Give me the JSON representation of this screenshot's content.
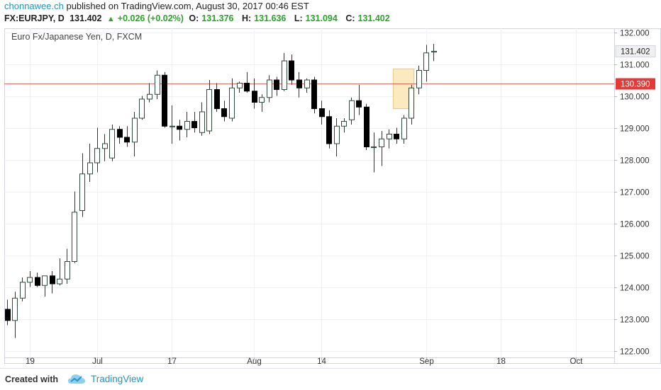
{
  "header": {
    "user": "chonnawee.ch",
    "published_text": "published on TradingView.com, August 30, 2017 00:46 EST",
    "symbol": "FX:EURJPY, D",
    "last": "131.402",
    "change": "+0.026 (+0.02%)",
    "o_label": "O:",
    "o_val": "131.376",
    "h_label": "H:",
    "h_val": "131.636",
    "l_label": "L:",
    "l_val": "131.094",
    "c_label": "C:",
    "c_val": "131.402"
  },
  "footer": {
    "created_with": "Created with",
    "brand": "TradingView"
  },
  "chart_data": {
    "type": "candlestick",
    "title": "Euro Fx/Japanese Yen, D, FXCM",
    "ylim": [
      121.9,
      132.2
    ],
    "yticks": [
      "132.000",
      "131.000",
      "130.000",
      "129.000",
      "128.000",
      "127.000",
      "126.000",
      "125.000",
      "124.000",
      "123.000",
      "122.000"
    ],
    "xticks": [
      {
        "label": "19",
        "index": 3
      },
      {
        "label": "Jul",
        "index": 12
      },
      {
        "label": "17",
        "index": 22
      },
      {
        "label": "Aug",
        "index": 33
      },
      {
        "label": "14",
        "index": 42
      },
      {
        "label": "Sep",
        "index": 56
      },
      {
        "label": "18",
        "index": 66
      },
      {
        "label": "Oct",
        "index": 76
      }
    ],
    "current_price_label": "131.402",
    "horizontal_line": {
      "value": 130.39,
      "label": "130.390",
      "color": "#e53935"
    },
    "highlight_box": {
      "start_index": 52,
      "end_index": 54,
      "top": 130.85,
      "bottom": 129.6
    },
    "colors": {
      "up_body": "#ffffff",
      "down_body": "#000000",
      "wick": "#333333",
      "grid": "#eef0f3",
      "price_label_bg": "#f0f0f0"
    },
    "candles": [
      {
        "o": 123.3,
        "h": 123.6,
        "l": 122.8,
        "c": 122.95
      },
      {
        "o": 122.95,
        "h": 123.85,
        "l": 122.4,
        "c": 123.65
      },
      {
        "o": 123.65,
        "h": 124.3,
        "l": 123.55,
        "c": 124.15
      },
      {
        "o": 124.15,
        "h": 124.5,
        "l": 124.0,
        "c": 124.3
      },
      {
        "o": 124.3,
        "h": 124.45,
        "l": 124.0,
        "c": 124.05
      },
      {
        "o": 124.05,
        "h": 124.3,
        "l": 123.7,
        "c": 124.35
      },
      {
        "o": 124.35,
        "h": 124.5,
        "l": 123.8,
        "c": 124.1
      },
      {
        "o": 124.1,
        "h": 124.9,
        "l": 124.05,
        "c": 124.25
      },
      {
        "o": 124.25,
        "h": 125.2,
        "l": 124.1,
        "c": 124.8
      },
      {
        "o": 124.8,
        "h": 127.0,
        "l": 124.75,
        "c": 126.35
      },
      {
        "o": 126.4,
        "h": 128.2,
        "l": 126.2,
        "c": 127.55
      },
      {
        "o": 127.55,
        "h": 128.5,
        "l": 127.3,
        "c": 127.9
      },
      {
        "o": 127.9,
        "h": 129.0,
        "l": 127.6,
        "c": 128.35
      },
      {
        "o": 128.35,
        "h": 128.8,
        "l": 127.95,
        "c": 128.5
      },
      {
        "o": 128.05,
        "h": 129.1,
        "l": 127.95,
        "c": 128.95
      },
      {
        "o": 128.95,
        "h": 129.05,
        "l": 128.5,
        "c": 128.7
      },
      {
        "o": 128.7,
        "h": 129.05,
        "l": 128.4,
        "c": 128.55
      },
      {
        "o": 128.55,
        "h": 129.5,
        "l": 128.1,
        "c": 129.3
      },
      {
        "o": 129.3,
        "h": 130.0,
        "l": 129.25,
        "c": 129.9
      },
      {
        "o": 129.9,
        "h": 130.4,
        "l": 129.8,
        "c": 130.05
      },
      {
        "o": 130.05,
        "h": 130.8,
        "l": 129.9,
        "c": 130.65
      },
      {
        "o": 130.65,
        "h": 130.75,
        "l": 129.0,
        "c": 129.05
      },
      {
        "o": 129.05,
        "h": 129.7,
        "l": 128.5,
        "c": 129.05
      },
      {
        "o": 129.05,
        "h": 129.25,
        "l": 128.6,
        "c": 128.95
      },
      {
        "o": 128.95,
        "h": 129.5,
        "l": 128.7,
        "c": 129.2
      },
      {
        "o": 129.2,
        "h": 129.5,
        "l": 128.85,
        "c": 129.0
      },
      {
        "o": 128.85,
        "h": 129.8,
        "l": 128.75,
        "c": 129.5
      },
      {
        "o": 128.9,
        "h": 130.5,
        "l": 128.8,
        "c": 130.2
      },
      {
        "o": 130.2,
        "h": 130.4,
        "l": 129.5,
        "c": 129.6
      },
      {
        "o": 129.6,
        "h": 129.85,
        "l": 129.2,
        "c": 129.35
      },
      {
        "o": 129.3,
        "h": 130.55,
        "l": 129.2,
        "c": 130.25
      },
      {
        "o": 130.25,
        "h": 130.45,
        "l": 130.1,
        "c": 130.4
      },
      {
        "o": 130.4,
        "h": 130.75,
        "l": 130.1,
        "c": 130.15
      },
      {
        "o": 130.15,
        "h": 130.55,
        "l": 129.6,
        "c": 129.8
      },
      {
        "o": 129.8,
        "h": 130.05,
        "l": 129.5,
        "c": 129.95
      },
      {
        "o": 129.95,
        "h": 130.65,
        "l": 129.8,
        "c": 130.5
      },
      {
        "o": 130.5,
        "h": 130.6,
        "l": 130.0,
        "c": 130.2
      },
      {
        "o": 130.2,
        "h": 131.35,
        "l": 130.15,
        "c": 131.1
      },
      {
        "o": 131.1,
        "h": 131.3,
        "l": 130.35,
        "c": 130.5
      },
      {
        "o": 130.5,
        "h": 130.75,
        "l": 129.95,
        "c": 130.25
      },
      {
        "o": 130.25,
        "h": 130.55,
        "l": 130.1,
        "c": 130.5
      },
      {
        "o": 130.5,
        "h": 130.6,
        "l": 129.45,
        "c": 129.6
      },
      {
        "o": 129.6,
        "h": 129.85,
        "l": 129.1,
        "c": 129.35
      },
      {
        "o": 129.35,
        "h": 129.55,
        "l": 128.35,
        "c": 128.5
      },
      {
        "o": 128.5,
        "h": 129.3,
        "l": 128.1,
        "c": 129.05
      },
      {
        "o": 129.05,
        "h": 129.3,
        "l": 128.85,
        "c": 129.2
      },
      {
        "o": 129.25,
        "h": 129.95,
        "l": 129.1,
        "c": 129.85
      },
      {
        "o": 129.85,
        "h": 130.35,
        "l": 129.4,
        "c": 129.65
      },
      {
        "o": 129.65,
        "h": 129.75,
        "l": 128.3,
        "c": 128.4
      },
      {
        "o": 128.4,
        "h": 128.85,
        "l": 127.6,
        "c": 128.4
      },
      {
        "o": 128.4,
        "h": 128.9,
        "l": 127.8,
        "c": 128.65
      },
      {
        "o": 128.65,
        "h": 128.95,
        "l": 128.35,
        "c": 128.8
      },
      {
        "o": 128.8,
        "h": 129.0,
        "l": 128.5,
        "c": 128.65
      },
      {
        "o": 128.65,
        "h": 129.4,
        "l": 128.5,
        "c": 129.3
      },
      {
        "o": 129.3,
        "h": 130.35,
        "l": 129.1,
        "c": 130.25
      },
      {
        "o": 130.25,
        "h": 130.95,
        "l": 130.05,
        "c": 130.8
      },
      {
        "o": 130.8,
        "h": 131.6,
        "l": 130.45,
        "c": 131.35
      },
      {
        "o": 131.376,
        "h": 131.636,
        "l": 131.094,
        "c": 131.402
      }
    ]
  }
}
